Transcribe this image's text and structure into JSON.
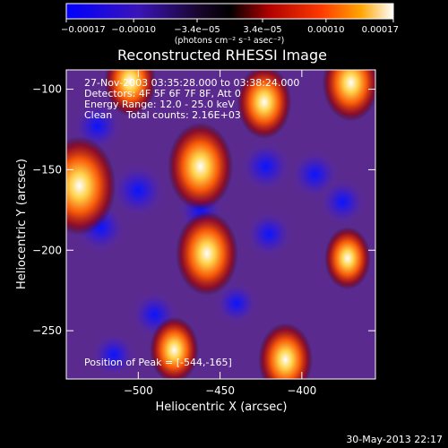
{
  "chart_data": {
    "type": "heatmap",
    "title": "Reconstructed RHESSI Image",
    "xlabel": "Heliocentric X (arcsec)",
    "ylabel": "Heliocentric Y (arcsec)",
    "xlim": [
      -544,
      -355
    ],
    "ylim": [
      -280,
      -88
    ],
    "x_ticks": [
      -500,
      -450,
      -400
    ],
    "x_tick_labels": [
      "−500",
      "−450",
      "−400"
    ],
    "y_ticks": [
      -100,
      -150,
      -200,
      -250
    ],
    "y_tick_labels": [
      "−100",
      "−150",
      "−200",
      "−250"
    ],
    "colorbar": {
      "min": -0.00017,
      "max": 0.00017,
      "ticks": [
        -0.00017,
        -0.0001,
        -3.4e-05,
        3.4e-05,
        0.0001,
        0.00017
      ],
      "tick_labels": [
        "−0.00017",
        "−0.00010",
        "−3.4e−05",
        "3.4e−05",
        "0.00010",
        "0.00017"
      ],
      "units_text": "(photons cm⁻² s⁻¹ asec⁻²)",
      "colors": [
        "#0000ff",
        "#4b0082",
        "#000000",
        "#b00000",
        "#ff4500",
        "#ffa500",
        "#ffffff"
      ]
    },
    "bright_sources": [
      {
        "x": -536,
        "y": -160,
        "value": 0.00017
      },
      {
        "x": -462,
        "y": -148,
        "value": 0.00014
      },
      {
        "x": -458,
        "y": -202,
        "value": 0.00013
      },
      {
        "x": -423,
        "y": -108,
        "value": 0.0001
      },
      {
        "x": -370,
        "y": -96,
        "value": 0.00011
      },
      {
        "x": -505,
        "y": -95,
        "value": 9e-05
      },
      {
        "x": -478,
        "y": -262,
        "value": 8e-05
      },
      {
        "x": -410,
        "y": -268,
        "value": 0.0001
      },
      {
        "x": -372,
        "y": -205,
        "value": 7e-05
      }
    ],
    "dark_sources": [
      {
        "x": -525,
        "y": -123,
        "value": -0.0001
      },
      {
        "x": -523,
        "y": -186,
        "value": -0.00011
      },
      {
        "x": -500,
        "y": -163,
        "value": -0.00013
      },
      {
        "x": -462,
        "y": -175,
        "value": -8e-05
      },
      {
        "x": -422,
        "y": -148,
        "value": -0.00011
      },
      {
        "x": -420,
        "y": -190,
        "value": -9e-05
      },
      {
        "x": -392,
        "y": -153,
        "value": -0.0001
      },
      {
        "x": -375,
        "y": -170,
        "value": -9e-05
      },
      {
        "x": -490,
        "y": -240,
        "value": -9e-05
      },
      {
        "x": -515,
        "y": -265,
        "value": -8e-05
      },
      {
        "x": -440,
        "y": -233,
        "value": -7e-05
      }
    ]
  },
  "overlay": {
    "time_range": "27-Nov-2003 03:35:28.000 to 03:38:24.000",
    "detectors": "Detectors: 4F 5F 6F 7F 8F, Att 0",
    "energy_range": "Energy Range: 12.0 - 25.0 keV",
    "clean_label": "Clean",
    "total_counts": "Total counts: 2.16E+03",
    "peak_position": "Position of Peak = [-544,-165]"
  },
  "footer": {
    "timestamp": "30-May-2013 22:17"
  }
}
